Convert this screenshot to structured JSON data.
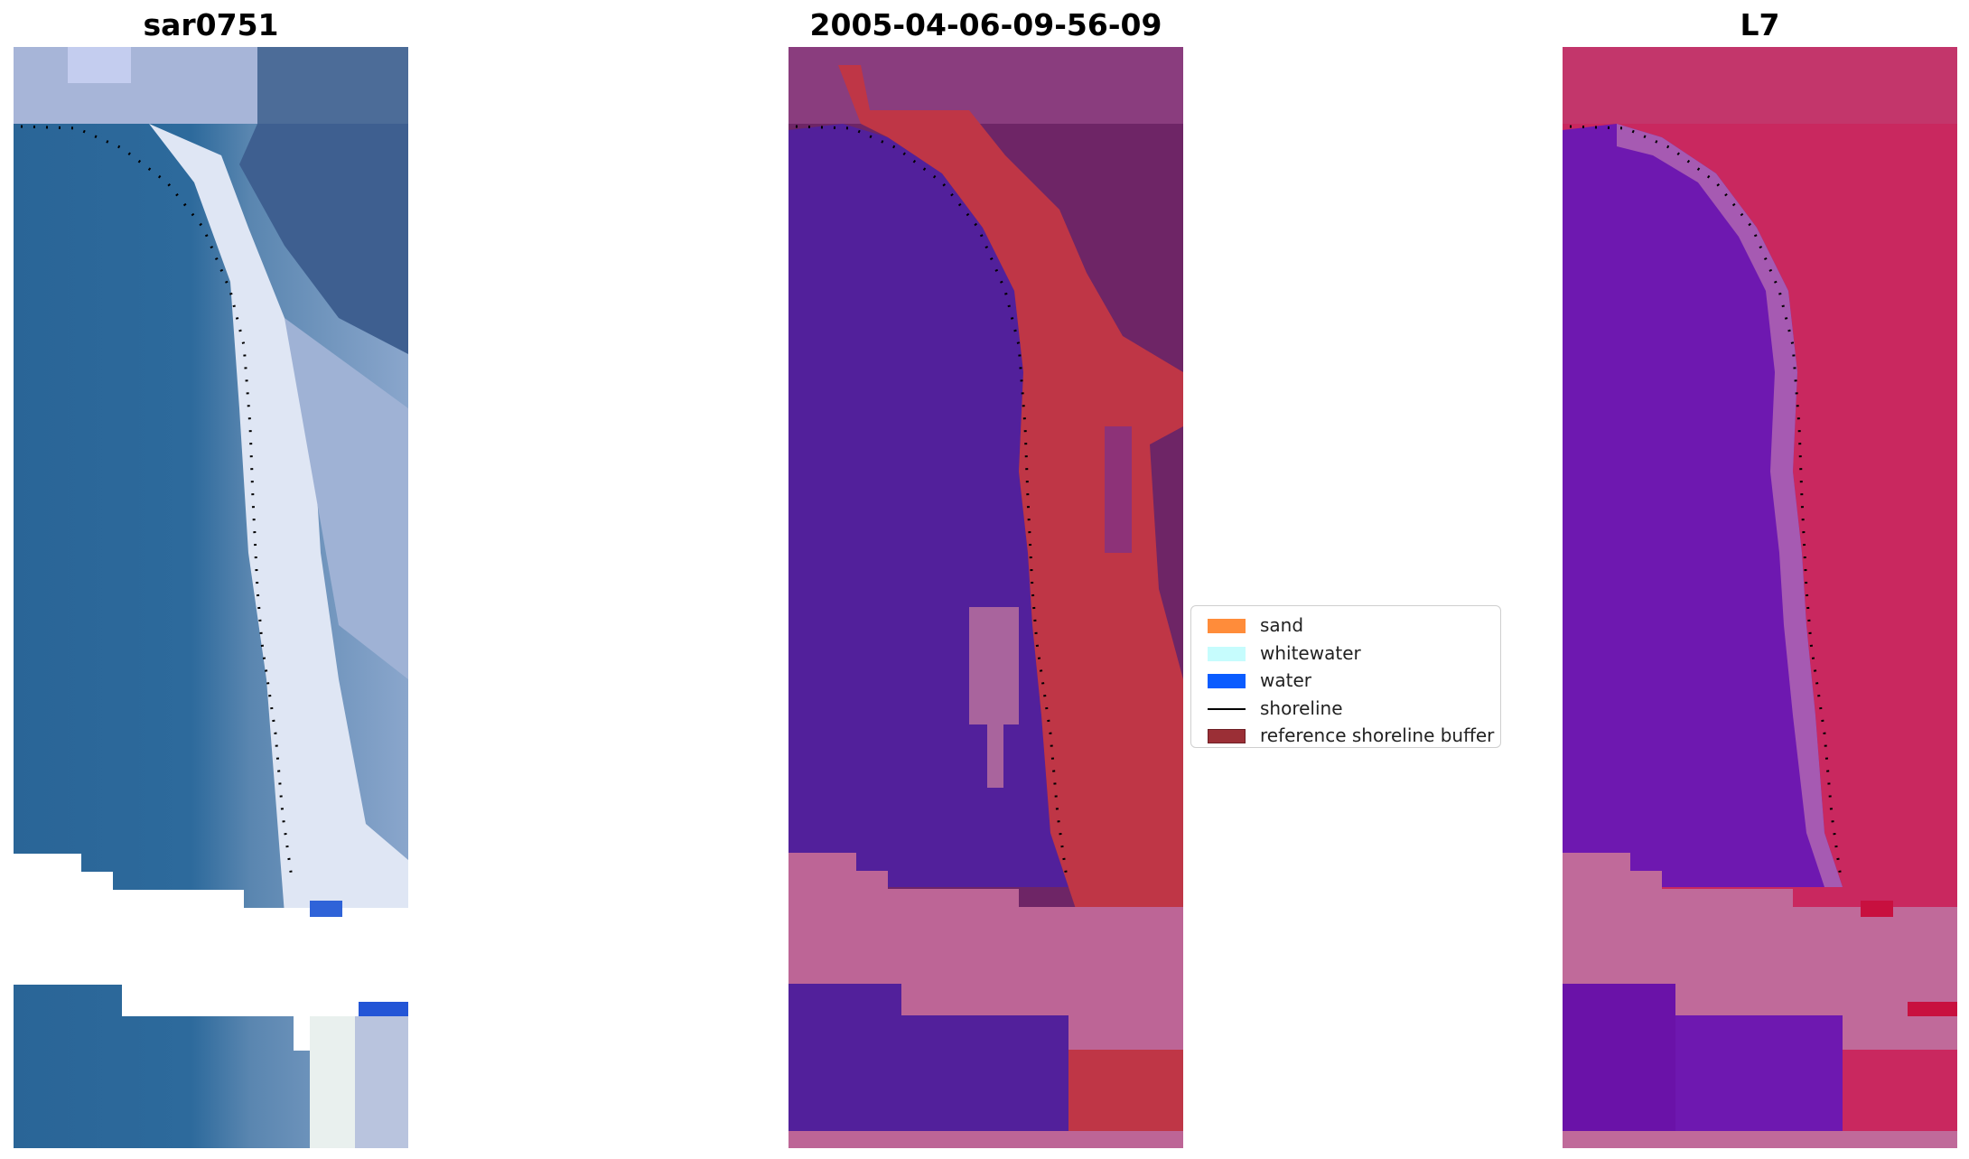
{
  "panels": [
    {
      "title": "sar0751"
    },
    {
      "title": "2005-04-06-09-56-09"
    },
    {
      "title": "L7"
    }
  ],
  "legend": {
    "items": [
      {
        "label": "sand",
        "color": "#ff8c3a",
        "kind": "patch"
      },
      {
        "label": "whitewater",
        "color": "#c6fcfd",
        "kind": "patch"
      },
      {
        "label": "water",
        "color": "#0a5cff",
        "kind": "patch"
      },
      {
        "label": "shoreline",
        "color": "#000000",
        "kind": "line"
      },
      {
        "label": "reference shoreline buffer",
        "color": "#9b2f36",
        "kind": "patch"
      }
    ]
  },
  "colors": {
    "rgb_water": "#2e6b9e",
    "rgb_whitewater": "#e8edf5",
    "rgb_land": "#3f5e8c",
    "class_water": "#52209b",
    "class_buffer": "#bf3646",
    "class_land": "#6e2566",
    "class_nodata": "#bd6596",
    "fc_water": "#6e18b0",
    "fc_land": "#c9285f",
    "fc_nodata": "#c06a9a"
  }
}
